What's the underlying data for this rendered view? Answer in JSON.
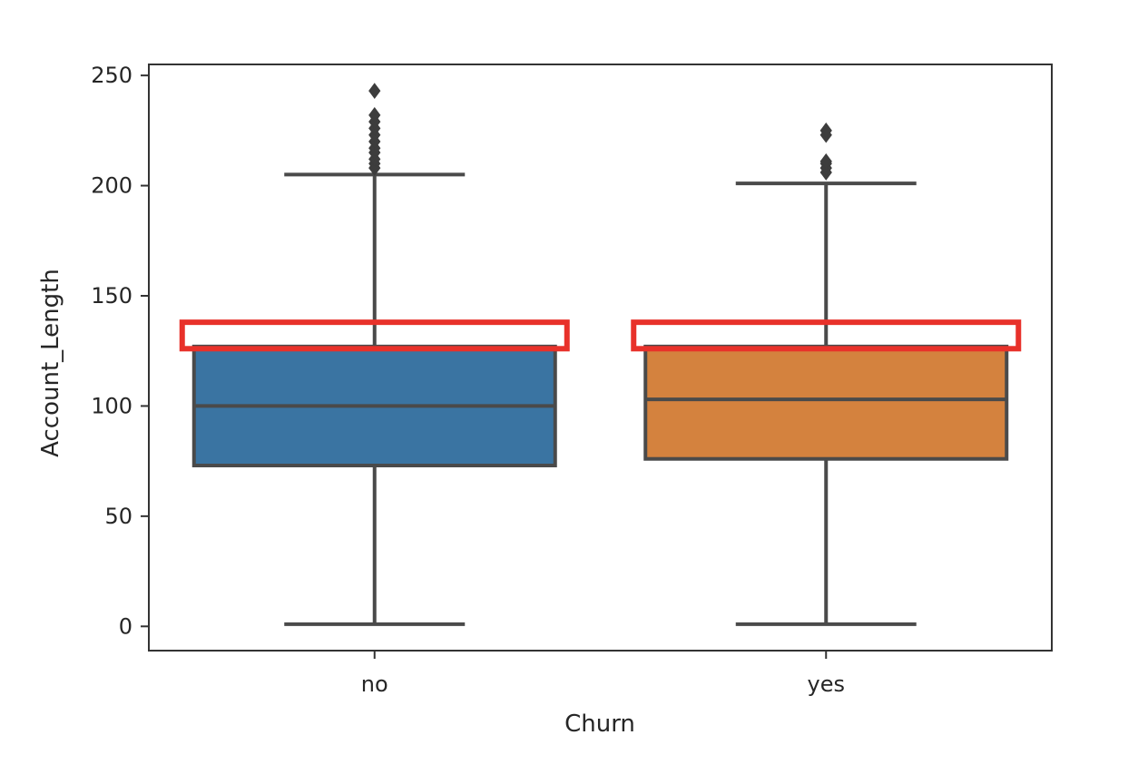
{
  "chart_data": {
    "type": "box",
    "title": "",
    "xlabel": "Churn",
    "ylabel": "Account_Length",
    "ylim": [
      -11,
      255
    ],
    "yticks": [
      0,
      50,
      100,
      150,
      200,
      250
    ],
    "grid": false,
    "categories": [
      "no",
      "yes"
    ],
    "boxes": [
      {
        "category": "no",
        "color": "#3a74a2",
        "whisker_low": 1,
        "q1": 73,
        "median": 100,
        "q3": 127,
        "whisker_high": 205,
        "outliers": [
          208,
          210,
          212,
          215,
          217,
          220,
          223,
          226,
          229,
          232,
          243
        ]
      },
      {
        "category": "yes",
        "color": "#d4823e",
        "whisker_low": 1,
        "q1": 76,
        "median": 103,
        "q3": 127,
        "whisker_high": 201,
        "outliers": [
          206,
          208,
          210,
          211,
          223,
          225
        ]
      }
    ],
    "highlight_boxes": [
      {
        "category": "no",
        "y_low": 126,
        "y_high": 138,
        "color": "#e8312a"
      },
      {
        "category": "yes",
        "y_low": 126,
        "y_high": 138,
        "color": "#e8312a"
      }
    ]
  }
}
